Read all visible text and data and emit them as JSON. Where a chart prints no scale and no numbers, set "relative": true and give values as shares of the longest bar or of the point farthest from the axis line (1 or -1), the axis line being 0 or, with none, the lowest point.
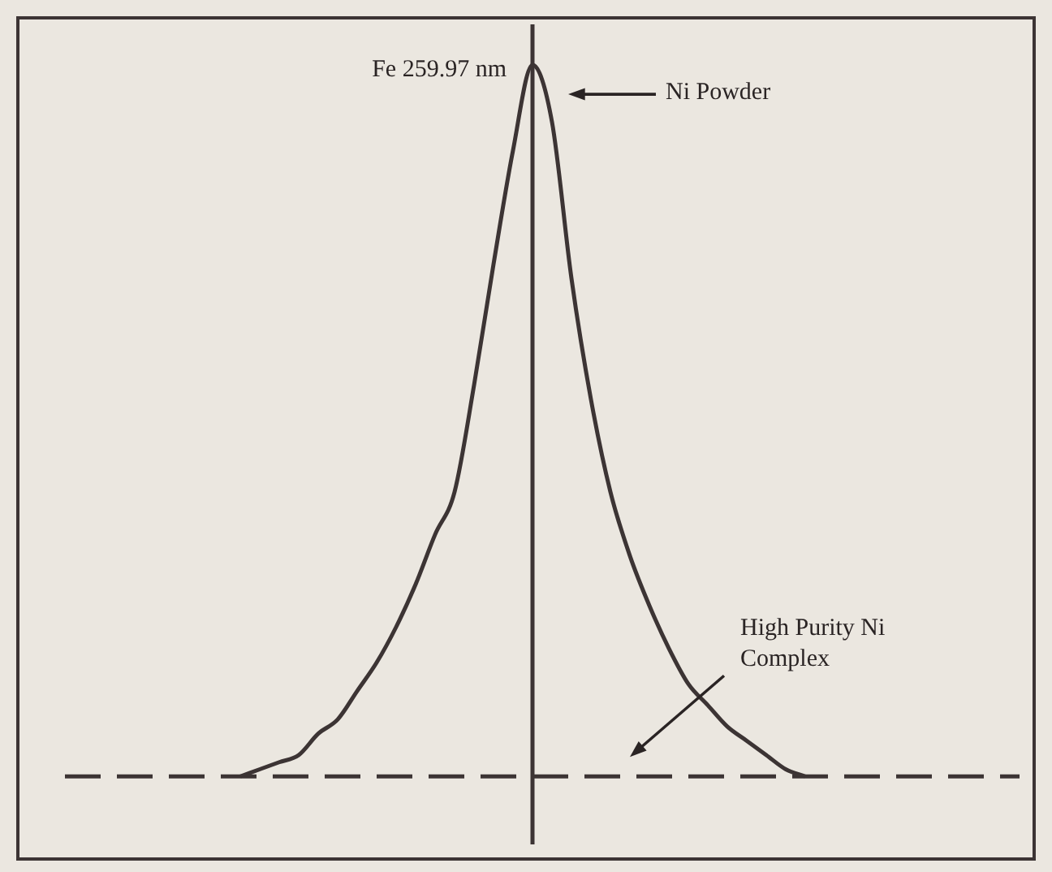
{
  "chart_data": {
    "type": "line",
    "relative": true,
    "legend": false,
    "marker": "none",
    "categories": [
      null,
      null,
      null,
      null,
      null,
      null,
      null,
      null,
      null,
      null,
      null,
      null,
      null,
      null,
      null,
      null,
      null,
      null,
      null,
      null,
      null,
      null,
      null,
      null,
      null,
      null,
      null,
      null,
      null,
      null,
      null,
      null,
      null,
      null,
      null,
      null,
      null,
      null,
      null,
      null,
      null,
      null,
      null,
      null,
      null,
      null,
      null,
      null,
      null,
      null
    ],
    "series": [
      {
        "color": "#3c3434",
        "values": [
          null,
          null,
          null,
          null,
          null,
          null,
          null,
          null,
          null,
          0,
          0.01,
          0.02,
          0.03,
          0.06,
          0.08,
          0.12,
          0.16,
          0.21,
          0.27,
          0.34,
          0.4,
          0.55,
          0.72,
          0.88,
          1,
          0.92,
          0.7,
          0.53,
          0.4,
          0.31,
          0.24,
          0.18,
          0.13,
          0.1,
          0.07,
          0.05,
          0.03,
          0.01,
          0,
          null,
          null,
          null,
          null,
          null,
          null,
          null,
          null,
          null,
          null,
          null
        ]
      }
    ],
    "ref_lines": [
      {
        "axis": "y",
        "value": 0,
        "line_style": "dashed",
        "color": "#3c3434"
      },
      {
        "axis": "x",
        "label": "Fe 259.97 nm",
        "color": "#3c3434"
      }
    ],
    "annotations": [
      "Ni Powder",
      "High Purity Ni Complex"
    ]
  }
}
